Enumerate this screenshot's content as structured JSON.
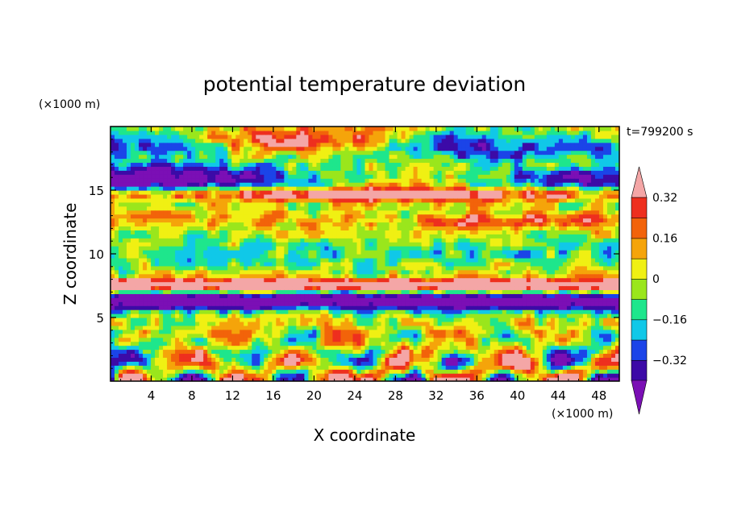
{
  "chart_data": {
    "type": "heatmap",
    "title": "potential temperature deviation",
    "xlabel": "X coordinate",
    "ylabel": "Z coordinate",
    "x_unit": "(×1000 m)",
    "y_unit": "(×1000 m)",
    "time_label": "t=799200 s",
    "xlim": [
      0,
      50
    ],
    "ylim": [
      0,
      20
    ],
    "x_ticks": [
      "4",
      "8",
      "12",
      "16",
      "20",
      "24",
      "28",
      "32",
      "36",
      "40",
      "44",
      "48"
    ],
    "y_ticks": [
      "5",
      "10",
      "15"
    ],
    "colorbar": {
      "levels": [
        -0.4,
        -0.32,
        -0.24,
        -0.16,
        -0.08,
        0,
        0.08,
        0.16,
        0.24,
        0.32,
        0.4
      ],
      "labels": [
        "−0.32",
        "−0.16",
        "0",
        "0.16",
        "0.32"
      ],
      "label_values": [
        -0.32,
        -0.16,
        0,
        0.16,
        0.32
      ],
      "colors": [
        "#7b0fb5",
        "#3c0aa7",
        "#1b44e8",
        "#10c8e8",
        "#1ee68c",
        "#9ae61c",
        "#f0f013",
        "#f5a40a",
        "#f2630a",
        "#ee2f1e",
        "#f4a6a6"
      ],
      "extend": "both"
    },
    "field_description_bands": [
      {
        "z_range": [
          18,
          20
        ],
        "dominant": "mixed positive / strong negative"
      },
      {
        "z_range": [
          15,
          17
        ],
        "dominant": "strong negative (purple)"
      },
      {
        "z_range": [
          9,
          12
        ],
        "dominant": "near zero (green / cyan)"
      },
      {
        "z_range": [
          7,
          8
        ],
        "dominant": "strong positive (pink)"
      },
      {
        "z_range": [
          5,
          7
        ],
        "dominant": "strong negative (purple)"
      },
      {
        "z_range": [
          0,
          5
        ],
        "dominant": "turbulent mixed values"
      }
    ]
  }
}
